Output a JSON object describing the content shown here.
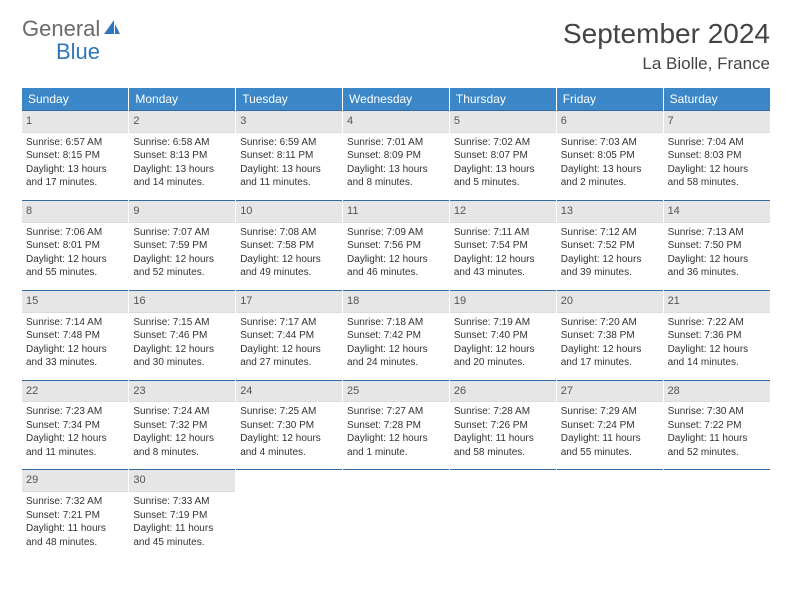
{
  "brand": {
    "general": "General",
    "blue": "Blue"
  },
  "title": "September 2024",
  "location": "La Biolle, France",
  "header_bg": "#3b87c8",
  "header_text": "#ffffff",
  "daynum_bg": "#e6e6e6",
  "row_border": "#2f6aa3",
  "weekdays": [
    "Sunday",
    "Monday",
    "Tuesday",
    "Wednesday",
    "Thursday",
    "Friday",
    "Saturday"
  ],
  "weeks": [
    [
      {
        "day": "1",
        "sunrise": "Sunrise: 6:57 AM",
        "sunset": "Sunset: 8:15 PM",
        "daylight": "Daylight: 13 hours and 17 minutes."
      },
      {
        "day": "2",
        "sunrise": "Sunrise: 6:58 AM",
        "sunset": "Sunset: 8:13 PM",
        "daylight": "Daylight: 13 hours and 14 minutes."
      },
      {
        "day": "3",
        "sunrise": "Sunrise: 6:59 AM",
        "sunset": "Sunset: 8:11 PM",
        "daylight": "Daylight: 13 hours and 11 minutes."
      },
      {
        "day": "4",
        "sunrise": "Sunrise: 7:01 AM",
        "sunset": "Sunset: 8:09 PM",
        "daylight": "Daylight: 13 hours and 8 minutes."
      },
      {
        "day": "5",
        "sunrise": "Sunrise: 7:02 AM",
        "sunset": "Sunset: 8:07 PM",
        "daylight": "Daylight: 13 hours and 5 minutes."
      },
      {
        "day": "6",
        "sunrise": "Sunrise: 7:03 AM",
        "sunset": "Sunset: 8:05 PM",
        "daylight": "Daylight: 13 hours and 2 minutes."
      },
      {
        "day": "7",
        "sunrise": "Sunrise: 7:04 AM",
        "sunset": "Sunset: 8:03 PM",
        "daylight": "Daylight: 12 hours and 58 minutes."
      }
    ],
    [
      {
        "day": "8",
        "sunrise": "Sunrise: 7:06 AM",
        "sunset": "Sunset: 8:01 PM",
        "daylight": "Daylight: 12 hours and 55 minutes."
      },
      {
        "day": "9",
        "sunrise": "Sunrise: 7:07 AM",
        "sunset": "Sunset: 7:59 PM",
        "daylight": "Daylight: 12 hours and 52 minutes."
      },
      {
        "day": "10",
        "sunrise": "Sunrise: 7:08 AM",
        "sunset": "Sunset: 7:58 PM",
        "daylight": "Daylight: 12 hours and 49 minutes."
      },
      {
        "day": "11",
        "sunrise": "Sunrise: 7:09 AM",
        "sunset": "Sunset: 7:56 PM",
        "daylight": "Daylight: 12 hours and 46 minutes."
      },
      {
        "day": "12",
        "sunrise": "Sunrise: 7:11 AM",
        "sunset": "Sunset: 7:54 PM",
        "daylight": "Daylight: 12 hours and 43 minutes."
      },
      {
        "day": "13",
        "sunrise": "Sunrise: 7:12 AM",
        "sunset": "Sunset: 7:52 PM",
        "daylight": "Daylight: 12 hours and 39 minutes."
      },
      {
        "day": "14",
        "sunrise": "Sunrise: 7:13 AM",
        "sunset": "Sunset: 7:50 PM",
        "daylight": "Daylight: 12 hours and 36 minutes."
      }
    ],
    [
      {
        "day": "15",
        "sunrise": "Sunrise: 7:14 AM",
        "sunset": "Sunset: 7:48 PM",
        "daylight": "Daylight: 12 hours and 33 minutes."
      },
      {
        "day": "16",
        "sunrise": "Sunrise: 7:15 AM",
        "sunset": "Sunset: 7:46 PM",
        "daylight": "Daylight: 12 hours and 30 minutes."
      },
      {
        "day": "17",
        "sunrise": "Sunrise: 7:17 AM",
        "sunset": "Sunset: 7:44 PM",
        "daylight": "Daylight: 12 hours and 27 minutes."
      },
      {
        "day": "18",
        "sunrise": "Sunrise: 7:18 AM",
        "sunset": "Sunset: 7:42 PM",
        "daylight": "Daylight: 12 hours and 24 minutes."
      },
      {
        "day": "19",
        "sunrise": "Sunrise: 7:19 AM",
        "sunset": "Sunset: 7:40 PM",
        "daylight": "Daylight: 12 hours and 20 minutes."
      },
      {
        "day": "20",
        "sunrise": "Sunrise: 7:20 AM",
        "sunset": "Sunset: 7:38 PM",
        "daylight": "Daylight: 12 hours and 17 minutes."
      },
      {
        "day": "21",
        "sunrise": "Sunrise: 7:22 AM",
        "sunset": "Sunset: 7:36 PM",
        "daylight": "Daylight: 12 hours and 14 minutes."
      }
    ],
    [
      {
        "day": "22",
        "sunrise": "Sunrise: 7:23 AM",
        "sunset": "Sunset: 7:34 PM",
        "daylight": "Daylight: 12 hours and 11 minutes."
      },
      {
        "day": "23",
        "sunrise": "Sunrise: 7:24 AM",
        "sunset": "Sunset: 7:32 PM",
        "daylight": "Daylight: 12 hours and 8 minutes."
      },
      {
        "day": "24",
        "sunrise": "Sunrise: 7:25 AM",
        "sunset": "Sunset: 7:30 PM",
        "daylight": "Daylight: 12 hours and 4 minutes."
      },
      {
        "day": "25",
        "sunrise": "Sunrise: 7:27 AM",
        "sunset": "Sunset: 7:28 PM",
        "daylight": "Daylight: 12 hours and 1 minute."
      },
      {
        "day": "26",
        "sunrise": "Sunrise: 7:28 AM",
        "sunset": "Sunset: 7:26 PM",
        "daylight": "Daylight: 11 hours and 58 minutes."
      },
      {
        "day": "27",
        "sunrise": "Sunrise: 7:29 AM",
        "sunset": "Sunset: 7:24 PM",
        "daylight": "Daylight: 11 hours and 55 minutes."
      },
      {
        "day": "28",
        "sunrise": "Sunrise: 7:30 AM",
        "sunset": "Sunset: 7:22 PM",
        "daylight": "Daylight: 11 hours and 52 minutes."
      }
    ],
    [
      {
        "day": "29",
        "sunrise": "Sunrise: 7:32 AM",
        "sunset": "Sunset: 7:21 PM",
        "daylight": "Daylight: 11 hours and 48 minutes."
      },
      {
        "day": "30",
        "sunrise": "Sunrise: 7:33 AM",
        "sunset": "Sunset: 7:19 PM",
        "daylight": "Daylight: 11 hours and 45 minutes."
      },
      null,
      null,
      null,
      null,
      null
    ]
  ]
}
